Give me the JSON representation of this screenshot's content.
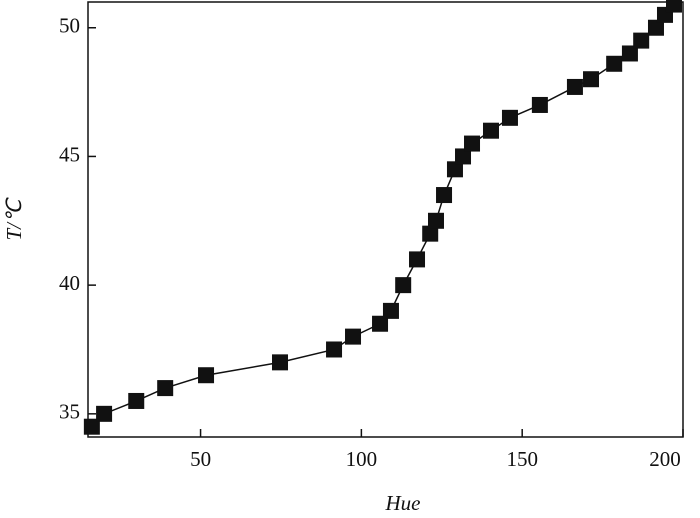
{
  "chart_data": {
    "type": "line",
    "x_label": "Hue",
    "y_label": "T/℃",
    "x": [
      16.2,
      20,
      30,
      39,
      51.7,
      74.7,
      91.5,
      97.4,
      105.8,
      109.2,
      113,
      117.3,
      121.4,
      123.2,
      125.7,
      129.1,
      131.6,
      134.4,
      140.3,
      146.2,
      155.5,
      166.4,
      171.4,
      178.6,
      183.5,
      187,
      191.6,
      194.4,
      197.2
    ],
    "series": [
      {
        "color": "#111111",
        "values": [
          34.5,
          35,
          35.5,
          36,
          36.5,
          37,
          37.5,
          38,
          38.5,
          39,
          40,
          41,
          42,
          42.5,
          43.5,
          44.5,
          45,
          45.5,
          46,
          46.5,
          47,
          47.7,
          48,
          48.6,
          49,
          49.5,
          50,
          50.5,
          50.9
        ]
      }
    ],
    "xlim": [
      15,
      200
    ],
    "xticks": [
      50,
      100,
      150,
      200
    ],
    "ylim": [
      34.1,
      51
    ],
    "yticks": [
      35,
      40,
      45,
      50
    ]
  }
}
